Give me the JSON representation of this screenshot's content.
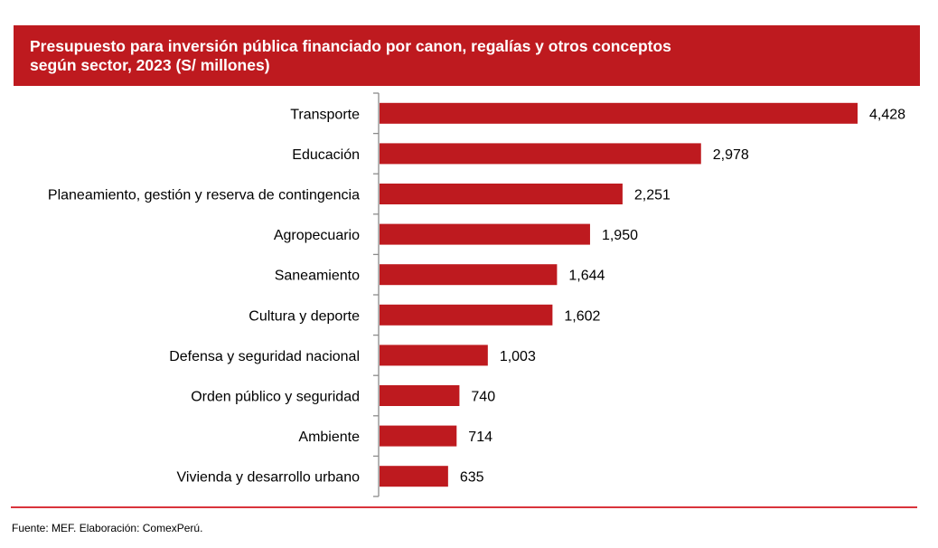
{
  "colors": {
    "bar": "#be1a1f",
    "header_bg": "#be1a1f",
    "axis": "#8c8c8c",
    "rule": "#d9343c"
  },
  "footer": {
    "source": "Fuente: MEF. Elaboración: ComexPerú."
  },
  "chart_data": {
    "type": "bar",
    "orientation": "horizontal",
    "title": "Presupuesto para inversión pública financiado por canon, regalías y otros conceptos\nsegún sector, 2023 (S/ millones)",
    "xlabel": "",
    "ylabel": "",
    "xlim": [
      0,
      4428
    ],
    "grid": false,
    "legend": null,
    "categories": [
      "Transporte",
      "Educación",
      "Planeamiento, gestión y reserva de contingencia",
      "Agropecuario",
      "Saneamiento",
      "Cultura y deporte",
      "Defensa y seguridad nacional",
      "Orden público y seguridad",
      "Ambiente",
      "Vivienda y desarrollo urbano"
    ],
    "values": [
      4428,
      2978,
      2251,
      1950,
      1644,
      1602,
      1003,
      740,
      714,
      635
    ],
    "value_labels": [
      "4,428",
      "2,978",
      "2,251",
      "1,950",
      "1,644",
      "1,602",
      "1,003",
      "740",
      "714",
      "635"
    ]
  }
}
